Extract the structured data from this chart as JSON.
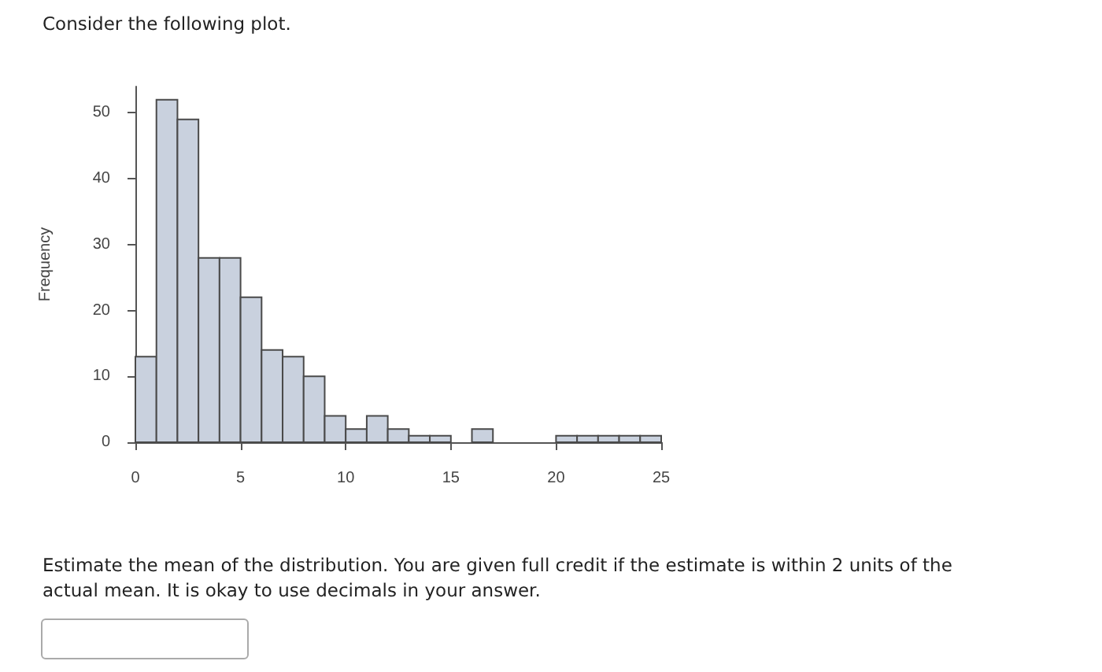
{
  "chart_data": {
    "type": "histogram",
    "title": "Consider the following plot.",
    "ylabel": "Frequency",
    "annotations": [
      "Estimate the mean of the distribution. You are given full credit if the estimate is within 2 units of the actual mean. It is okay to use decimals in your answer."
    ],
    "bins": [
      0,
      1,
      2,
      3,
      4,
      5,
      6,
      7,
      8,
      9,
      10,
      11,
      12,
      13,
      14,
      15,
      16,
      17,
      18,
      19,
      20,
      21,
      22,
      23,
      24,
      25
    ],
    "values": [
      13,
      52,
      49,
      28,
      28,
      22,
      14,
      13,
      10,
      4,
      2,
      4,
      2,
      1,
      1,
      0,
      2,
      0,
      0,
      0,
      1,
      1,
      1,
      1,
      1
    ],
    "color": "#c9d1de",
    "xlim": [
      0,
      25
    ],
    "xticks": [
      0,
      5,
      10,
      15,
      20,
      25
    ],
    "ylim": [
      0,
      54
    ],
    "yticks": [
      0,
      10,
      20,
      30,
      40,
      50
    ]
  }
}
